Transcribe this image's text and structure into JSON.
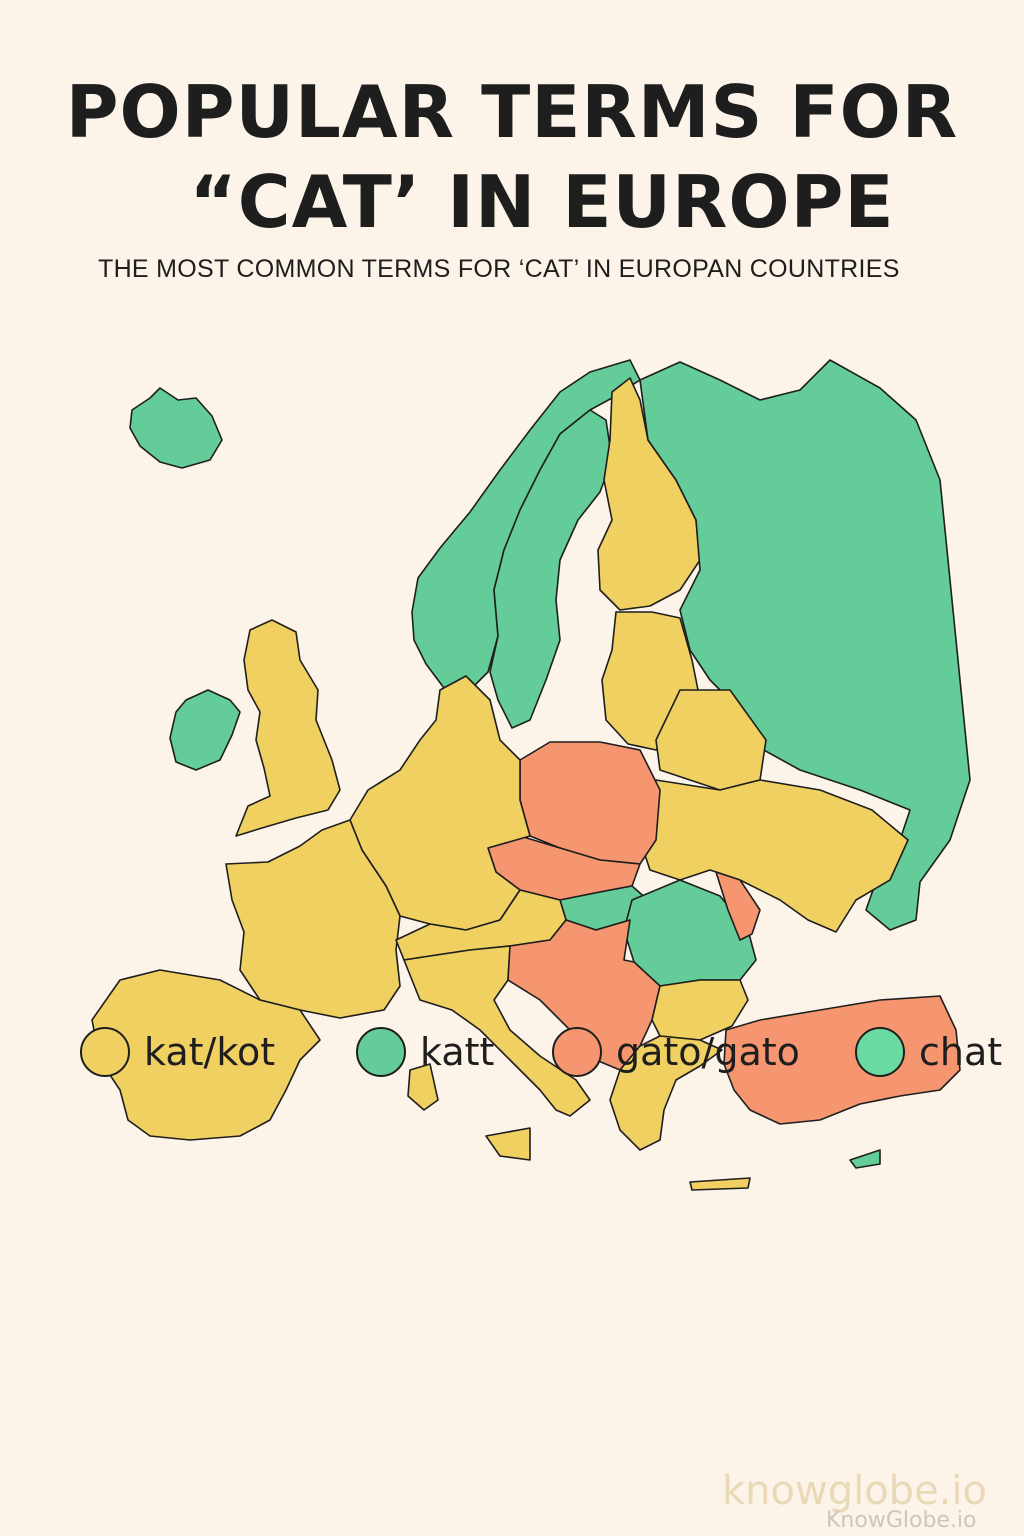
{
  "header": {
    "title_line1": "POPULAR TERMS FOR",
    "title_line2": "“CAT’ IN EUROPE",
    "subtitle": "THE MOST COMMON TERMS FOR ‘CAT’ IN EUROPAN COUNTRIES"
  },
  "colors": {
    "kat_kot": "#f0d060",
    "katt": "#64cc98",
    "gato": "#f59670",
    "chat": "#6ad9a2",
    "background": "#fcf3e9",
    "outline": "#1e1e1e"
  },
  "legend": [
    {
      "label": "kat/kot",
      "color": "#f0d060"
    },
    {
      "label": "katt",
      "color": "#64cc98"
    },
    {
      "label": "gato/gato",
      "color": "#f59670"
    },
    {
      "label": "chat",
      "color": "#6ad9a2"
    }
  ],
  "watermark": {
    "brand": "knowglobe.io",
    "brand_caption": "KnowGlobe.io"
  }
}
